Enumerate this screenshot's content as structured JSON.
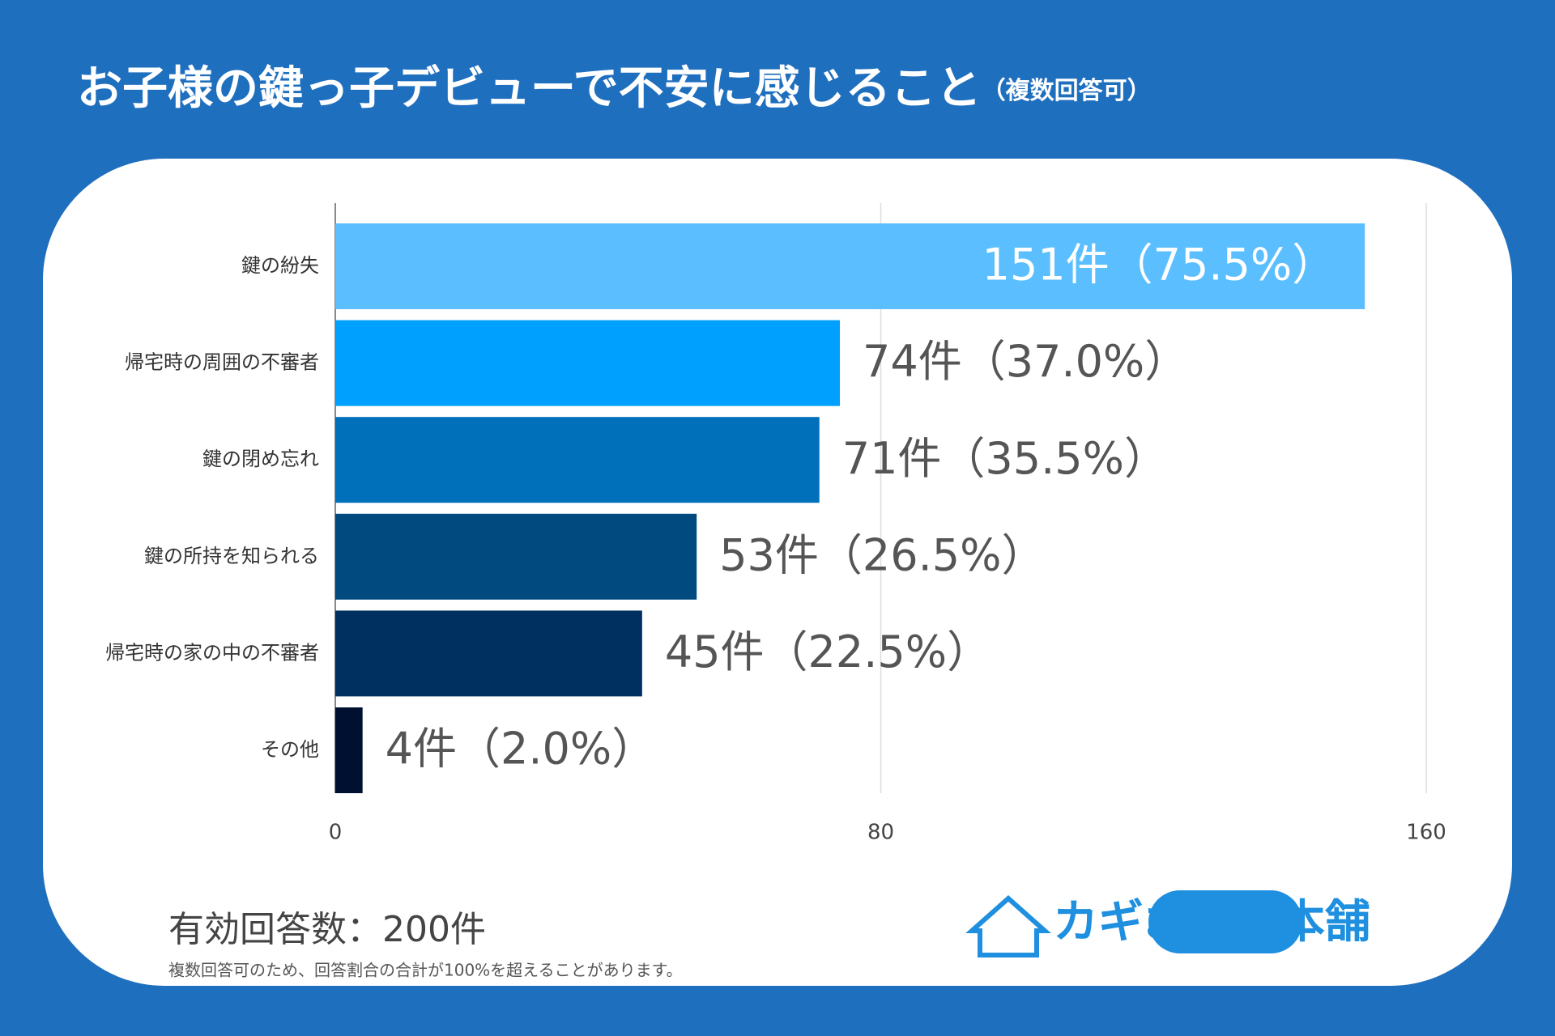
{
  "chart_data": {
    "type": "bar",
    "orientation": "horizontal",
    "title": "お子様の鍵っ子デビューで不安に感じること",
    "subtitle": "（複数回答可）",
    "categories": [
      "鍵の紛失",
      "帰宅時の周囲の不審者",
      "鍵の閉め忘れ",
      "鍵の所持を知られる",
      "帰宅時の家の中の不審者",
      "その他"
    ],
    "values": [
      151,
      74,
      71,
      53,
      45,
      4
    ],
    "value_labels": [
      "151件（75.5%）",
      "74件（37.0%）",
      "71件（35.5%）",
      "53件（26.5%）",
      "45件（22.5%）",
      "4件（2.0%）"
    ],
    "colors": [
      "#5bbfff",
      "#00a0ff",
      "#0070bb",
      "#004a80",
      "#003060",
      "#001030"
    ],
    "xlim": [
      0,
      160
    ],
    "xticks": [
      0,
      80,
      160
    ],
    "grid": true,
    "footer": "有効回答数：200件",
    "note": "複数回答可のため、回答割合の合計が100%を超えることがあります。",
    "logo": "カギお助け本舗"
  }
}
